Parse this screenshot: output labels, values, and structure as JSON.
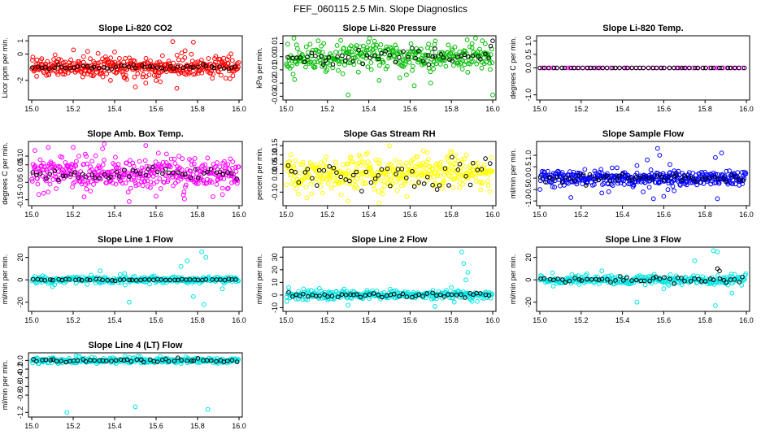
{
  "figure": {
    "title": "FEF_060115  2.5 Min. Slope Diagnostics"
  },
  "chart_data": [
    {
      "id": "co2",
      "type": "scatter",
      "title": "Slope Li-820 CO2",
      "xlabel": "",
      "ylabel": "Licor ppm per min.",
      "xlim": [
        15.0,
        16.0
      ],
      "ylim": [
        -3.3,
        1.2
      ],
      "xticks": [
        "15.0",
        "15.2",
        "15.4",
        "15.6",
        "15.8",
        "16.0"
      ],
      "yticks": [
        "-2",
        "0",
        "1"
      ],
      "series": [
        {
          "name": "all",
          "color": "#ff0000",
          "n": 400,
          "center": -1.0,
          "spread": 0.35,
          "points": [
            [
              15.25,
              -0.2
            ],
            [
              15.27,
              0.2
            ],
            [
              15.32,
              0.05
            ],
            [
              15.4,
              0.15
            ],
            [
              15.68,
              0.95
            ],
            [
              15.74,
              0.25
            ],
            [
              15.78,
              0.9
            ],
            [
              15.62,
              -2.1
            ],
            [
              15.7,
              -2.6
            ],
            [
              15.55,
              -2.2
            ],
            [
              15.38,
              -2.0
            ],
            [
              15.45,
              -1.8
            ],
            [
              15.5,
              -2.5
            ],
            [
              15.6,
              -2.0
            ]
          ]
        },
        {
          "name": "avg",
          "color": "#000000",
          "n": 50,
          "center": -1.0,
          "spread": 0.08,
          "points": []
        }
      ]
    },
    {
      "id": "pressure",
      "type": "scatter",
      "title": "Slope Li-820 Pressure",
      "xlabel": "",
      "ylabel": "kPa per min.",
      "xlim": [
        15.0,
        16.0
      ],
      "ylim": [
        -0.031,
        0.014
      ],
      "xticks": [
        "15.0",
        "15.2",
        "15.4",
        "15.6",
        "15.8",
        "16.0"
      ],
      "yticks": [
        "-0.03",
        "-0.02",
        "-0.01",
        "0.00",
        "0.01"
      ],
      "series": [
        {
          "name": "all",
          "color": "#00bb00",
          "n": 330,
          "center": 0.0,
          "spread": 0.0055,
          "points": [
            [
              15.3,
              -0.029
            ],
            [
              16.0,
              -0.029
            ],
            [
              15.7,
              -0.02
            ],
            [
              15.62,
              -0.022
            ],
            [
              15.45,
              -0.018
            ],
            [
              15.9,
              0.01
            ],
            [
              15.95,
              0.012
            ],
            [
              15.05,
              0.009
            ],
            [
              15.17,
              0.008
            ],
            [
              15.55,
              -0.016
            ]
          ]
        },
        {
          "name": "avg",
          "color": "#000000",
          "n": 50,
          "center": 0.0,
          "spread": 0.0025,
          "points": [
            [
              16.0,
              0.012
            ],
            [
              15.99,
              0.008
            ],
            [
              15.72,
              0.006
            ],
            [
              15.18,
              -0.006
            ],
            [
              15.69,
              -0.006
            ]
          ]
        }
      ]
    },
    {
      "id": "temp",
      "type": "scatter",
      "title": "Slope Li-820 Temp.",
      "xlabel": "",
      "ylabel": "degrees C per min.",
      "xlim": [
        15.0,
        16.0
      ],
      "ylim": [
        -1.1,
        1.1
      ],
      "xticks": [
        "15.0",
        "15.2",
        "15.4",
        "15.6",
        "15.8",
        "16.0"
      ],
      "yticks": [
        "-1.0",
        "0.0",
        "0.5",
        "1.0"
      ],
      "series": [
        {
          "name": "all",
          "color": "#ff00ff",
          "n": 50,
          "center": 0.0,
          "spread": 0.0,
          "points": []
        },
        {
          "name": "avg",
          "color": "#000000",
          "n": 50,
          "center": 0.0,
          "spread": 0.0,
          "points": []
        }
      ]
    },
    {
      "id": "boxtemp",
      "type": "scatter",
      "title": "Slope Amb. Box Temp.",
      "xlabel": "",
      "ylabel": "degrees C per min.",
      "xlim": [
        15.0,
        16.0
      ],
      "ylim": [
        -0.17,
        0.17
      ],
      "xticks": [
        "15.0",
        "15.2",
        "15.4",
        "15.6",
        "15.8",
        "16.0"
      ],
      "yticks": [
        "-0.15",
        "-0.05",
        "0.05",
        "0.10"
      ],
      "series": [
        {
          "name": "all",
          "color": "#ff00ff",
          "n": 420,
          "center": 0.0,
          "spread": 0.045,
          "points": [
            [
              15.2,
              0.15
            ],
            [
              15.35,
              0.17
            ],
            [
              15.47,
              -0.16
            ],
            [
              15.55,
              0.16
            ],
            [
              15.08,
              0.15
            ],
            [
              15.6,
              -0.13
            ],
            [
              15.92,
              -0.12
            ]
          ]
        },
        {
          "name": "avg",
          "color": "#000000",
          "n": 50,
          "center": 0.0,
          "spread": 0.02,
          "points": []
        }
      ]
    },
    {
      "id": "rh",
      "type": "scatter",
      "title": "Slope Gas Stream RH",
      "xlabel": "",
      "ylabel": "percent per min.",
      "xlim": [
        15.0,
        16.0
      ],
      "ylim": [
        -0.16,
        0.16
      ],
      "xticks": [
        "15.0",
        "15.2",
        "15.4",
        "15.6",
        "15.8",
        "16.0"
      ],
      "yticks": [
        "-0.10",
        "0.00",
        "0.05",
        "0.10",
        "0.15"
      ],
      "series": [
        {
          "name": "all",
          "color": "#ffff00",
          "n": 420,
          "center": 0.0,
          "spread": 0.045,
          "points": [
            [
              15.5,
              0.15
            ],
            [
              15.3,
              -0.15
            ],
            [
              15.8,
              0.12
            ],
            [
              15.1,
              -0.13
            ],
            [
              15.45,
              -0.16
            ]
          ]
        },
        {
          "name": "avg",
          "color": "#000000",
          "n": 50,
          "center": 0.0,
          "spread": 0.045,
          "points": []
        }
      ]
    },
    {
      "id": "sampleflow",
      "type": "scatter",
      "title": "Slope Sample Flow",
      "xlabel": "",
      "ylabel": "ml/min per min.",
      "xlim": [
        15.0,
        16.0
      ],
      "ylim": [
        -1.1,
        1.5
      ],
      "xticks": [
        "15.0",
        "15.2",
        "15.4",
        "15.6",
        "15.8",
        "16.0"
      ],
      "yticks": [
        "-1.0",
        "-0.5",
        "0.0",
        "0.5",
        "1.0"
      ],
      "series": [
        {
          "name": "all",
          "color": "#0000ff",
          "n": 400,
          "center": 0.0,
          "spread": 0.16,
          "points": [
            [
              15.57,
              1.3
            ],
            [
              15.58,
              1.0
            ],
            [
              15.55,
              -0.9
            ],
            [
              15.6,
              -0.8
            ],
            [
              15.52,
              0.8
            ],
            [
              15.63,
              0.6
            ],
            [
              15.5,
              -0.6
            ],
            [
              15.88,
              1.1
            ],
            [
              15.85,
              0.9
            ],
            [
              15.86,
              -0.9
            ],
            [
              15.15,
              -0.85
            ],
            [
              15.3,
              -0.65
            ],
            [
              15.35,
              0.45
            ],
            [
              15.47,
              0.55
            ],
            [
              15.65,
              -0.55
            ],
            [
              15.53,
              -0.4
            ],
            [
              15.62,
              -0.5
            ]
          ]
        },
        {
          "name": "avg",
          "color": "#000000",
          "n": 50,
          "center": 0.0,
          "spread": 0.1,
          "points": []
        }
      ]
    },
    {
      "id": "line1",
      "type": "scatter",
      "title": "Slope Line 1 Flow",
      "xlabel": "",
      "ylabel": "ml/min per min.",
      "xlim": [
        15.0,
        16.0
      ],
      "ylim": [
        -26,
        27
      ],
      "xticks": [
        "15.0",
        "15.2",
        "15.4",
        "15.6",
        "15.8",
        "16.0"
      ],
      "yticks": [
        "-20",
        "0",
        "20"
      ],
      "series": [
        {
          "name": "all",
          "color": "#00e5e5",
          "n": 300,
          "center": 0.0,
          "spread": 1.5,
          "points": [
            [
              15.82,
              25
            ],
            [
              15.84,
              20
            ],
            [
              15.75,
              17
            ],
            [
              15.83,
              -22
            ],
            [
              15.78,
              -15
            ],
            [
              15.47,
              -20
            ],
            [
              15.33,
              8
            ],
            [
              15.72,
              12
            ],
            [
              15.92,
              -8
            ],
            [
              15.1,
              -6
            ]
          ]
        },
        {
          "name": "avg",
          "color": "#000000",
          "n": 50,
          "center": 0.0,
          "spread": 0.3,
          "points": []
        }
      ]
    },
    {
      "id": "line2",
      "type": "scatter",
      "title": "Slope Line 2 Flow",
      "xlabel": "",
      "ylabel": "ml/min per min.",
      "xlim": [
        15.0,
        16.0
      ],
      "ylim": [
        -11,
        36
      ],
      "xticks": [
        "15.0",
        "15.2",
        "15.4",
        "15.6",
        "15.8",
        "16.0"
      ],
      "yticks": [
        "-10",
        "0",
        "10",
        "20",
        "30"
      ],
      "series": [
        {
          "name": "all",
          "color": "#00e5e5",
          "n": 300,
          "center": 0.0,
          "spread": 1.8,
          "points": [
            [
              15.85,
              34
            ],
            [
              15.86,
              25
            ],
            [
              15.88,
              18
            ],
            [
              15.87,
              12
            ],
            [
              15.3,
              -8
            ],
            [
              15.72,
              -9
            ],
            [
              15.9,
              -5
            ],
            [
              15.8,
              6
            ]
          ]
        },
        {
          "name": "avg",
          "color": "#000000",
          "n": 50,
          "center": 0.0,
          "spread": 1.0,
          "points": []
        }
      ]
    },
    {
      "id": "line3",
      "type": "scatter",
      "title": "Slope Line 3 Flow",
      "xlabel": "",
      "ylabel": "ml/min per min.",
      "xlim": [
        15.0,
        16.0
      ],
      "ylim": [
        -26,
        27
      ],
      "xticks": [
        "15.0",
        "15.2",
        "15.4",
        "15.6",
        "15.8",
        "16.0"
      ],
      "yticks": [
        "-20",
        "0",
        "20"
      ],
      "series": [
        {
          "name": "all",
          "color": "#00e5e5",
          "n": 300,
          "center": 0.0,
          "spread": 2.0,
          "points": [
            [
              15.84,
              26
            ],
            [
              15.86,
              25
            ],
            [
              15.85,
              -23
            ],
            [
              15.93,
              -12
            ],
            [
              15.75,
              17
            ],
            [
              15.47,
              -20
            ],
            [
              15.3,
              8
            ],
            [
              15.6,
              -8
            ]
          ]
        },
        {
          "name": "avg",
          "color": "#000000",
          "n": 50,
          "center": 0.0,
          "spread": 1.2,
          "points": [
            [
              15.86,
              10
            ],
            [
              15.87,
              8
            ]
          ]
        }
      ]
    },
    {
      "id": "line4",
      "type": "scatter",
      "title": "Slope Line 4 (LT) Flow",
      "xlabel": "",
      "ylabel": "ml/min per min.",
      "xlim": [
        15.0,
        16.0
      ],
      "ylim": [
        -1.25,
        0.12
      ],
      "xticks": [
        "15.0",
        "15.2",
        "15.4",
        "15.6",
        "15.8",
        "16.0"
      ],
      "yticks": [
        "-1.2",
        "-0.8",
        "-0.6",
        "-0.4",
        "-0.2",
        "0.0"
      ],
      "series": [
        {
          "name": "all",
          "color": "#00e5e5",
          "n": 300,
          "center": 0.0,
          "spread": 0.035,
          "points": [
            [
              15.17,
              -1.2
            ],
            [
              15.5,
              -1.07
            ],
            [
              15.85,
              -1.13
            ],
            [
              15.45,
              0.1
            ],
            [
              15.62,
              0.09
            ]
          ]
        },
        {
          "name": "avg",
          "color": "#000000",
          "n": 50,
          "center": 0.0,
          "spread": 0.02,
          "points": []
        }
      ]
    }
  ]
}
